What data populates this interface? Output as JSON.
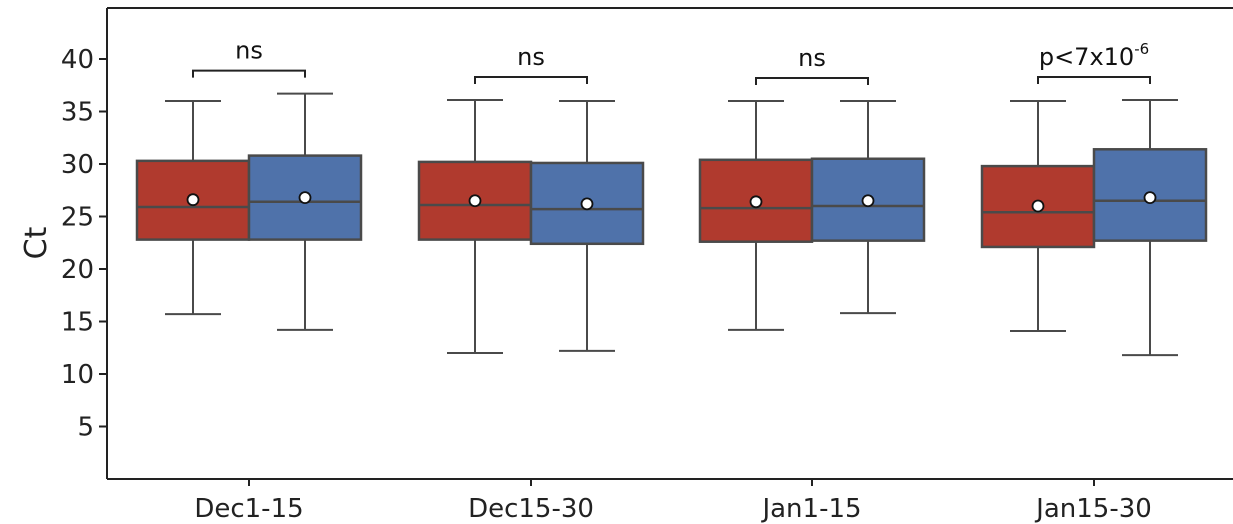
{
  "chart_data": {
    "type": "box",
    "title": "",
    "xlabel": "",
    "ylabel": "Ct",
    "ylim": [
      0,
      44
    ],
    "yticks": [
      5,
      10,
      15,
      20,
      25,
      30,
      35,
      40
    ],
    "categories": [
      "Dec1-15",
      "Dec15-30",
      "Jan1-15",
      "Jan15-30"
    ],
    "series": [
      {
        "color": "#b03a2e",
        "boxes": [
          {
            "whisker_low": 15.7,
            "q1": 22.8,
            "median": 25.9,
            "q3": 30.3,
            "whisker_high": 36.0,
            "mean": 26.6
          },
          {
            "whisker_low": 12.0,
            "q1": 22.8,
            "median": 26.1,
            "q3": 30.2,
            "whisker_high": 36.1,
            "mean": 26.5
          },
          {
            "whisker_low": 14.2,
            "q1": 22.6,
            "median": 25.8,
            "q3": 30.4,
            "whisker_high": 36.0,
            "mean": 26.4
          },
          {
            "whisker_low": 14.1,
            "q1": 22.1,
            "median": 25.4,
            "q3": 29.8,
            "whisker_high": 36.0,
            "mean": 26.0
          }
        ]
      },
      {
        "color": "#4f72aa",
        "boxes": [
          {
            "whisker_low": 14.2,
            "q1": 22.8,
            "median": 26.4,
            "q3": 30.8,
            "whisker_high": 36.7,
            "mean": 26.8
          },
          {
            "whisker_low": 12.2,
            "q1": 22.4,
            "median": 25.7,
            "q3": 30.1,
            "whisker_high": 36.0,
            "mean": 26.2
          },
          {
            "whisker_low": 15.8,
            "q1": 22.7,
            "median": 26.0,
            "q3": 30.5,
            "whisker_high": 36.0,
            "mean": 26.5
          },
          {
            "whisker_low": 11.8,
            "q1": 22.7,
            "median": 26.5,
            "q3": 31.4,
            "whisker_high": 36.1,
            "mean": 26.8
          }
        ]
      }
    ],
    "annotations": [
      {
        "text": "ns",
        "superscript": ""
      },
      {
        "text": "ns",
        "superscript": ""
      },
      {
        "text": "ns",
        "superscript": ""
      },
      {
        "text": "p<7x10",
        "superscript": "-6"
      }
    ],
    "grid": false,
    "legend": "none"
  }
}
